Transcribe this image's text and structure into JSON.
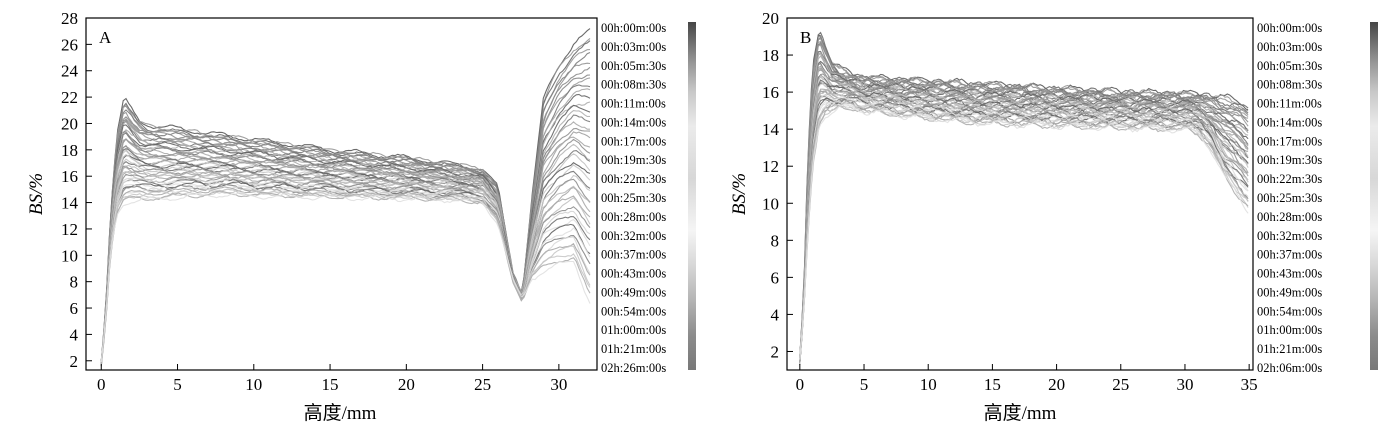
{
  "chart_data": [
    {
      "type": "line",
      "panel_label": "A",
      "xlabel": "高度/mm",
      "ylabel": "BS/%",
      "xlim": [
        -1,
        32.5
      ],
      "ylim": [
        1.3,
        28
      ],
      "xticks": [
        0,
        5,
        10,
        15,
        20,
        25,
        30
      ],
      "yticks": [
        2,
        4,
        6,
        8,
        10,
        12,
        14,
        16,
        18,
        20,
        22,
        24,
        26,
        28
      ],
      "grid": false,
      "legend_position": "right",
      "legend": [
        "00h:00m:00s",
        "00h:03m:00s",
        "00h:05m:30s",
        "00h:08m:30s",
        "00h:11m:00s",
        "00h:14m:00s",
        "00h:17m:00s",
        "00h:19m:30s",
        "00h:22m:30s",
        "00h:25m:30s",
        "00h:28m:00s",
        "00h:32m:00s",
        "00h:37m:00s",
        "00h:43m:00s",
        "00h:49m:00s",
        "00h:54m:00s",
        "01h:00m:00s",
        "01h:21m:00s",
        "02h:26m:00s"
      ],
      "series_profile": {
        "x": [
          0,
          0.3,
          0.6,
          1.0,
          1.5,
          2.0,
          2.5,
          3,
          5,
          8,
          10,
          15,
          20,
          23,
          24,
          25,
          26,
          27,
          27.6,
          28.2,
          29,
          30,
          31,
          32
        ],
        "top": [
          1.8,
          6,
          13,
          19,
          21.9,
          21.0,
          20.2,
          19.9,
          19.6,
          19.1,
          18.8,
          18.0,
          17.4,
          16.9,
          16.8,
          16.5,
          15.2,
          8.5,
          7,
          14,
          22,
          24.5,
          26,
          27
        ],
        "bottom": [
          1.8,
          5,
          10,
          13,
          14.0,
          14.1,
          14.2,
          14.2,
          14.4,
          14.6,
          14.5,
          14.4,
          14.3,
          14.2,
          14.1,
          14.0,
          12.5,
          8,
          6.6,
          8.2,
          8.8,
          9.3,
          9.5,
          6.5
        ]
      }
    },
    {
      "type": "line",
      "panel_label": "B",
      "xlabel": "高度/mm",
      "ylabel": "BS/%",
      "xlim": [
        -1,
        35.3
      ],
      "ylim": [
        1,
        20
      ],
      "xticks": [
        0,
        5,
        10,
        15,
        20,
        25,
        30,
        35
      ],
      "yticks": [
        2,
        4,
        6,
        8,
        10,
        12,
        14,
        16,
        18,
        20
      ],
      "grid": false,
      "legend_position": "right",
      "legend": [
        "00h:00m:00s",
        "00h:03m:00s",
        "00h:05m:30s",
        "00h:08m:30s",
        "00h:11m:00s",
        "00h:14m:00s",
        "00h:17m:00s",
        "00h:19m:30s",
        "00h:22m:30s",
        "00h:25m:30s",
        "00h:28m:00s",
        "00h:32m:00s",
        "00h:37m:00s",
        "00h:43m:00s",
        "00h:49m:00s",
        "00h:54m:00s",
        "01h:00m:00s",
        "01h:21m:00s",
        "02h:06m:00s"
      ],
      "series_profile": {
        "x": [
          0,
          0.3,
          0.6,
          1.0,
          1.5,
          2.0,
          2.5,
          3,
          4,
          5,
          10,
          15,
          20,
          25,
          30,
          31,
          32,
          33,
          34,
          35
        ],
        "top": [
          1.5,
          5,
          12,
          17.5,
          19.5,
          18.5,
          17.6,
          17.3,
          17.0,
          16.8,
          16.6,
          16.4,
          16.2,
          16.0,
          15.9,
          15.9,
          15.8,
          15.7,
          15.6,
          15.2
        ],
        "bottom": [
          1.5,
          4,
          8,
          12,
          14.2,
          14.8,
          15.0,
          15.1,
          15.2,
          15.0,
          14.6,
          14.3,
          14.2,
          14.1,
          14.0,
          13.8,
          13.0,
          11.5,
          10.5,
          9.6
        ]
      }
    }
  ]
}
